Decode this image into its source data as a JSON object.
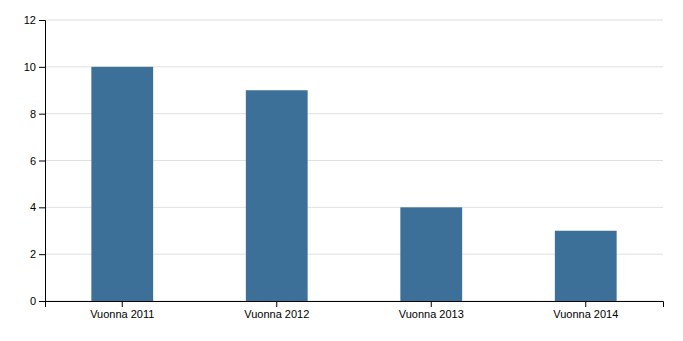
{
  "chart_data": {
    "type": "bar",
    "categories": [
      "Vuonna 2011",
      "Vuonna 2012",
      "Vuonna 2013",
      "Vuonna 2014"
    ],
    "values": [
      10,
      9,
      4,
      3
    ],
    "color": "#3d7098",
    "ylim": [
      0,
      12
    ],
    "yticks": [
      0,
      2,
      4,
      6,
      8,
      10,
      12
    ],
    "grid": true
  }
}
